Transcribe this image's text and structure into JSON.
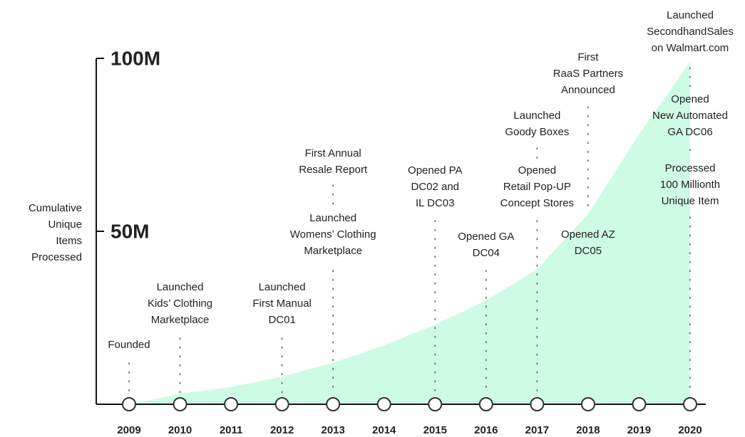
{
  "chart_data": {
    "type": "area",
    "y_label": [
      "Cumulative",
      "Unique",
      "Items",
      "Processed"
    ],
    "x": [
      2009,
      2010,
      2011,
      2012,
      2013,
      2014,
      2015,
      2016,
      2017,
      2018,
      2019,
      2020
    ],
    "values": [
      0,
      3,
      5,
      8,
      12,
      17,
      23,
      30,
      39,
      55,
      78,
      99
    ],
    "color": "#cdfbe4",
    "xlim": [
      2009,
      2020
    ],
    "ylim": [
      0,
      100
    ],
    "yticks": [
      {
        "value": 50,
        "label": "50M"
      },
      {
        "value": 100,
        "label": "100M"
      }
    ],
    "annotations": [
      {
        "x": 2009,
        "lines": [
          "Founded"
        ]
      },
      {
        "x": 2010,
        "lines": [
          "Launched",
          "Kids’ Clothing",
          "Marketplace"
        ]
      },
      {
        "x": 2012,
        "lines": [
          "Launched",
          "First Manual",
          "DC01"
        ]
      },
      {
        "x": 2013,
        "lines": [
          "First Annual",
          "Resale Report"
        ]
      },
      {
        "x": 2013,
        "lines": [
          "Launched",
          "Womens’ Clothing",
          "Marketplace"
        ]
      },
      {
        "x": 2015,
        "lines": [
          "Opened PA",
          "DC02 and",
          "IL DC03"
        ]
      },
      {
        "x": 2016,
        "lines": [
          "Opened GA",
          "DC04"
        ]
      },
      {
        "x": 2017,
        "lines": [
          "Launched",
          "Goody Boxes"
        ]
      },
      {
        "x": 2017,
        "lines": [
          "Opened",
          "Retail Pop-UP",
          "Concept Stores"
        ]
      },
      {
        "x": 2018,
        "lines": [
          "First",
          "RaaS Partners",
          "Announced"
        ]
      },
      {
        "x": 2018,
        "lines": [
          "Opened AZ",
          "DC05"
        ]
      },
      {
        "x": 2020,
        "lines": [
          "Launched",
          "SecondhandSales",
          "on Walmart.com"
        ]
      },
      {
        "x": 2020,
        "lines": [
          "Opened",
          "New Automated",
          "GA DC06"
        ]
      },
      {
        "x": 2020,
        "lines": [
          "Processed",
          "100 Millionth",
          "Unique Item"
        ]
      }
    ]
  }
}
